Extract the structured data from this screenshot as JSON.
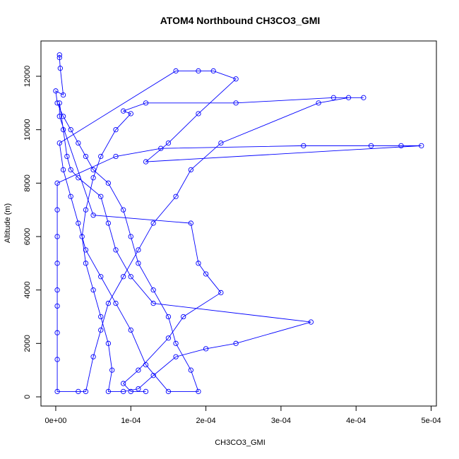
{
  "chart_data": {
    "type": "line",
    "title": "ATOM4 Northbound CH3CO3_GMI",
    "x_label": "CH3CO3_GMI",
    "y_label": "Altitude (m)",
    "x": [
      5e-06,
      5e-06,
      6e-06,
      1e-05,
      0,
      2e-06,
      1e-05,
      2e-05,
      3e-05,
      4e-05,
      5e-05,
      7e-05,
      9e-05,
      0.0001,
      0.00011,
      0.00013,
      0.00015,
      0.00016,
      0.00018,
      0.00019,
      0.00015,
      0.00012,
      0.0001,
      8e-05,
      6e-05,
      4e-05,
      3e-05,
      2e-05,
      1e-05,
      5e-06,
      0.00016,
      0.00019,
      0.00021,
      0.00024,
      0.00019,
      0.00015,
      0.00012,
      0.000487,
      0.00046,
      0.00042,
      0.00033,
      0.00014,
      8e-05,
      2e-06,
      2e-06,
      2e-06,
      2e-06,
      2e-06,
      2e-06,
      2e-06,
      2e-06,
      2e-06,
      3e-05,
      4e-05,
      5e-05,
      6e-05,
      7e-05,
      9e-05,
      0.00011,
      0.00013,
      0.00016,
      0.00018,
      0.00022,
      0.00035,
      0.00039,
      0.00041,
      0.00037,
      0.00024,
      0.00012,
      9e-05,
      0.0001,
      8e-05,
      6e-05,
      5e-05,
      4e-05,
      3.5e-05,
      4e-05,
      5e-05,
      6e-05,
      7e-05,
      7.5e-05,
      7e-05,
      9e-05,
      0.00011,
      0.00013,
      0.00016,
      0.0002,
      0.00024,
      0.00034,
      0.00013,
      0.0001,
      8e-05,
      7e-05,
      6e-05,
      3e-05,
      2e-05,
      1.5e-05,
      1e-05,
      5e-06,
      5e-06,
      5e-05,
      0.00018,
      0.00019,
      0.0002,
      0.00022,
      0.00017,
      0.00015,
      0.00011,
      9e-05,
      0.0001,
      0.00012
    ],
    "series": [
      {
        "color": "#0000ff",
        "values": [
          12800,
          12700,
          12300,
          11300,
          11450,
          11000,
          10500,
          10000,
          9500,
          9000,
          8500,
          8000,
          7000,
          6000,
          5000,
          4000,
          3000,
          2000,
          1000,
          200,
          200,
          1200,
          2500,
          3500,
          4500,
          5500,
          6500,
          7500,
          8500,
          9500,
          12200,
          12200,
          12200,
          11900,
          10600,
          9500,
          8800,
          9400,
          9400,
          9400,
          9400,
          9300,
          9000,
          8000,
          7000,
          6000,
          5000,
          4000,
          3400,
          2400,
          1400,
          200,
          200,
          200,
          1500,
          2500,
          3500,
          4500,
          5500,
          6500,
          7500,
          8500,
          9500,
          11000,
          11200,
          11200,
          11200,
          11000,
          11000,
          10700,
          10600,
          10000,
          9000,
          8200,
          7000,
          6000,
          5000,
          4000,
          3000,
          2000,
          1000,
          200,
          200,
          300,
          800,
          1500,
          1800,
          2000,
          2800,
          3500,
          4500,
          5500,
          6500,
          7500,
          8200,
          8500,
          9000,
          10000,
          11000,
          10500,
          6800,
          6500,
          5000,
          4600,
          3900,
          3000,
          2200,
          1000,
          500,
          200,
          200
        ]
      }
    ],
    "xlim": [
      -1.97e-05,
      0.000507
    ],
    "ylim": [
      -344,
      13322
    ],
    "xticks": [
      {
        "value": 0,
        "label": "0e+00"
      },
      {
        "value": 0.0001,
        "label": "1e-04"
      },
      {
        "value": 0.0002,
        "label": "2e-04"
      },
      {
        "value": 0.0003,
        "label": "3e-04"
      },
      {
        "value": 0.0004,
        "label": "4e-04"
      },
      {
        "value": 0.0005,
        "label": "5e-04"
      }
    ],
    "yticks": [
      0,
      2000,
      4000,
      6000,
      8000,
      10000,
      12000
    ]
  }
}
